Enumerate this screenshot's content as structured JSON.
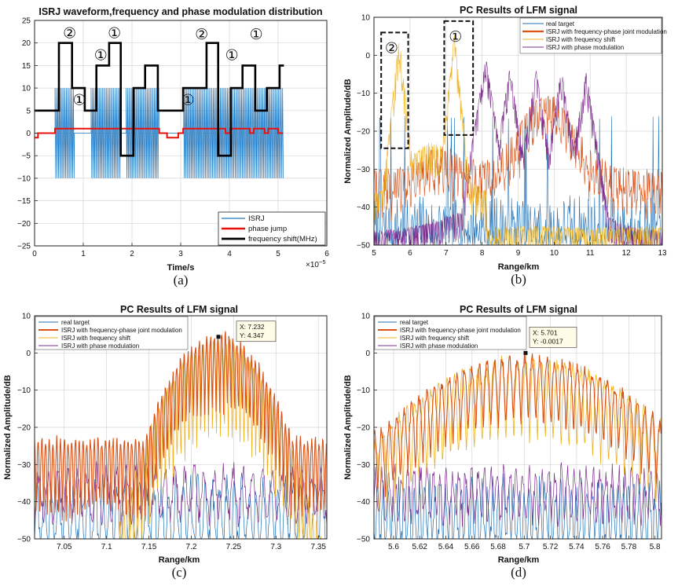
{
  "chart_data": [
    {
      "id": "a",
      "type": "line",
      "title": "ISRJ waveform,frequency and phase modulation distribution",
      "xlabel": "Time/s",
      "ylabel": "",
      "x_exponent": "×10",
      "x_exponent_power": "−5",
      "xlim": [
        0,
        6
      ],
      "ylim": [
        -25,
        25
      ],
      "xticks": [
        0,
        1,
        2,
        3,
        4,
        5,
        6
      ],
      "yticks": [
        -25,
        -20,
        -15,
        -10,
        -5,
        0,
        5,
        10,
        15,
        20,
        25
      ],
      "grid": true,
      "legend_position": "bottom-right",
      "colors": {
        "isrj": "#1f77c0",
        "phase": "#e8100b",
        "freq": "#000000"
      },
      "legend": [
        "ISRJ",
        "phase jump",
        "frequency shift(MHz)"
      ],
      "isrj_bursts": [
        [
          0.42,
          0.82
        ],
        [
          1.16,
          1.76
        ],
        [
          1.88,
          2.56
        ],
        [
          3.06,
          5.12
        ]
      ],
      "isrj_amplitude": 10,
      "isrj_intro_level": 0,
      "series": [
        {
          "name": "frequency shift(MHz)",
          "x": [
            0,
            0.5,
            0.5,
            0.77,
            0.77,
            1.03,
            1.03,
            1.27,
            1.27,
            1.53,
            1.53,
            1.77,
            1.77,
            2.03,
            2.03,
            2.27,
            2.27,
            2.53,
            2.53,
            3.05,
            3.05,
            3.53,
            3.53,
            3.77,
            3.77,
            4.03,
            4.03,
            4.27,
            4.27,
            4.53,
            4.53,
            4.77,
            4.77,
            5.03,
            5.03,
            5.12
          ],
          "y": [
            5,
            5,
            20,
            20,
            10,
            10,
            5,
            5,
            15,
            15,
            20,
            20,
            -5,
            -5,
            10,
            10,
            15,
            15,
            5,
            5,
            10,
            10,
            20,
            20,
            -5,
            -5,
            10,
            10,
            15,
            15,
            5,
            5,
            10,
            10,
            15,
            15
          ]
        },
        {
          "name": "phase jump",
          "x": [
            0,
            0.07,
            0.07,
            0.42,
            0.42,
            2.56,
            2.56,
            2.72,
            2.72,
            2.95,
            2.95,
            3.05,
            3.05,
            3.92,
            3.92,
            4.02,
            4.02,
            4.42,
            4.42,
            4.5,
            4.5,
            4.72,
            4.72,
            4.8,
            4.8,
            5.0,
            5.0,
            5.1
          ],
          "y": [
            -1,
            -1,
            0,
            0,
            1,
            1,
            0,
            0,
            -1,
            -1,
            0,
            0,
            1,
            1,
            0,
            0,
            1,
            1,
            0,
            0,
            1,
            1,
            0,
            0,
            1,
            1,
            0,
            0
          ]
        }
      ],
      "annotations": [
        {
          "text": "②",
          "x": 0.72,
          "y": 22.3
        },
        {
          "text": "①",
          "x": 0.92,
          "y": 7.5
        },
        {
          "text": "①",
          "x": 1.36,
          "y": 17.4
        },
        {
          "text": "①",
          "x": 1.64,
          "y": 22.3
        },
        {
          "text": "①",
          "x": 3.15,
          "y": 7.5
        },
        {
          "text": "②",
          "x": 3.43,
          "y": 22.0
        },
        {
          "text": "①",
          "x": 4.05,
          "y": 17.4
        },
        {
          "text": "①",
          "x": 4.55,
          "y": 22.0
        }
      ],
      "caption": "(a)"
    },
    {
      "id": "b",
      "type": "line",
      "title": "PC Results of LFM signal",
      "xlabel": "Range/km",
      "ylabel": "Normalized Amplitude/dB",
      "xlim": [
        5,
        13
      ],
      "ylim": [
        -50,
        10
      ],
      "xticks": [
        5,
        6,
        7,
        8,
        9,
        10,
        11,
        12,
        13
      ],
      "yticks": [
        -50,
        -40,
        -30,
        -20,
        -10,
        0,
        10
      ],
      "grid": true,
      "legend_position": "top-right",
      "legend": [
        "real target",
        "ISRJ with frequency-phase joint modulation",
        "ISRJ with frequency shift",
        "ISRJ with phase modulation"
      ],
      "colors": {
        "real": "#1f6fb4",
        "joint": "#d95319",
        "freq": "#edb120",
        "phase": "#7e2f8e"
      },
      "peaks": {
        "freq": [
          [
            5.7,
            4.5
          ],
          [
            7.23,
            5.0
          ]
        ],
        "phase": [
          [
            8.1,
            2.0
          ],
          [
            8.77,
            -1.0
          ],
          [
            9.5,
            -1.5
          ],
          [
            10.2,
            -1.5
          ],
          [
            10.88,
            -2.0
          ]
        ],
        "joint": [
          [
            9.5,
            -15.0
          ],
          [
            10.05,
            -14.0
          ]
        ]
      },
      "dashed_boxes": [
        {
          "label": "②",
          "x": [
            5.2,
            5.95
          ],
          "y": [
            -24.5,
            6.0
          ]
        },
        {
          "label": "①",
          "x": [
            6.95,
            7.75
          ],
          "y": [
            -21.0,
            9.0
          ]
        }
      ],
      "caption": "(b)"
    },
    {
      "id": "c",
      "type": "line",
      "title": "PC Results of LFM signal",
      "xlabel": "Range/km",
      "ylabel": "Normalized Amplitude/dB",
      "xlim": [
        7.015,
        7.36
      ],
      "ylim": [
        -50,
        10
      ],
      "xticks": [
        7.05,
        7.1,
        7.15,
        7.2,
        7.25,
        7.3,
        7.35
      ],
      "yticks": [
        -50,
        -40,
        -30,
        -20,
        -10,
        0,
        10
      ],
      "grid": true,
      "legend_position": "top-left",
      "legend": [
        "real target",
        "ISRJ with frequency-phase joint modulation",
        "ISRJ with frequency shift",
        "ISRJ with phase modulation"
      ],
      "colors": {
        "real": "#1f6fb4",
        "joint": "#d95319",
        "freq": "#edb120",
        "phase": "#7e2f8e"
      },
      "center": 7.232,
      "datatip": {
        "x": 7.232,
        "y": 4.347,
        "line1": "X: 7.232",
        "line2": "Y: 4.347"
      },
      "caption": "(c)"
    },
    {
      "id": "d",
      "type": "line",
      "title": "PC Results of LFM signal",
      "xlabel": "Range/km",
      "ylabel": "Normalized Amplitude/dB",
      "xlim": [
        5.585,
        5.805
      ],
      "ylim": [
        -50,
        10
      ],
      "xticks": [
        5.6,
        5.62,
        5.64,
        5.66,
        5.68,
        5.7,
        5.72,
        5.74,
        5.76,
        5.78,
        5.8
      ],
      "yticks": [
        -50,
        -40,
        -30,
        -20,
        -10,
        0,
        10
      ],
      "grid": true,
      "legend_position": "top-left",
      "legend": [
        "real target",
        "ISRJ with frequency-phase joint modulation",
        "ISRJ with frequency shift",
        "ISRJ with phase modulation"
      ],
      "colors": {
        "real": "#1f6fb4",
        "joint": "#d95319",
        "freq": "#edb120",
        "phase": "#7e2f8e"
      },
      "center": 5.701,
      "datatip": {
        "x": 5.701,
        "y": -0.0017,
        "line1": "X: 5.701",
        "line2": "Y: -0.0017"
      },
      "caption": "(d)"
    }
  ]
}
